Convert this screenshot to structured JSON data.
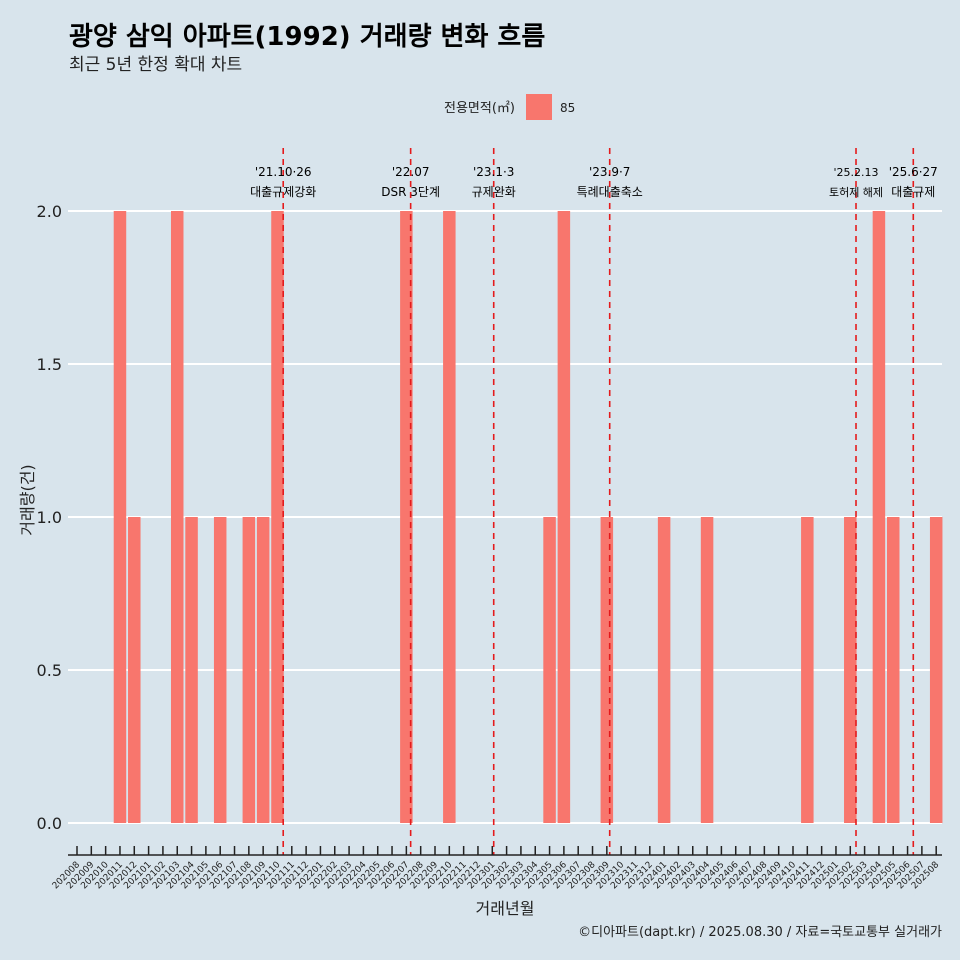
{
  "chart_data": {
    "type": "bar",
    "title": "광양 삼익 아파트(1992) 거래량 변화 흐름",
    "subtitle": "최근 5년 한정 확대 차트",
    "xlabel": "거래년월",
    "ylabel": "거래량(건)",
    "caption": "©디아파트(dapt.kr) / 2025.08.30 / 자료=국토교통부 실거래가",
    "ylim": [
      0,
      2.2
    ],
    "yticks": [
      0,
      0.5,
      1,
      1.5,
      2
    ],
    "ytick_labels": [
      "0.0",
      "0.5",
      "1.0",
      "1.5",
      "2.0"
    ],
    "grid": true,
    "legend": {
      "title": "전용면적(㎡)",
      "placement": "top",
      "entries": [
        {
          "label": "85",
          "color": "#f8766d"
        }
      ]
    },
    "categories": [
      "202008",
      "202009",
      "202010",
      "202011",
      "202012",
      "202101",
      "202102",
      "202103",
      "202104",
      "202105",
      "202106",
      "202107",
      "202108",
      "202109",
      "202110",
      "202111",
      "202112",
      "202201",
      "202202",
      "202203",
      "202204",
      "202205",
      "202206",
      "202207",
      "202208",
      "202209",
      "202210",
      "202211",
      "202212",
      "202301",
      "202302",
      "202303",
      "202304",
      "202305",
      "202306",
      "202307",
      "202308",
      "202309",
      "202310",
      "202311",
      "202312",
      "202401",
      "202402",
      "202403",
      "202404",
      "202405",
      "202406",
      "202407",
      "202408",
      "202409",
      "202410",
      "202411",
      "202412",
      "202501",
      "202502",
      "202503",
      "202504",
      "202505",
      "202506",
      "202507",
      "202508"
    ],
    "series": [
      {
        "name": "85",
        "color": "#f8766d",
        "points": [
          {
            "x": "202011",
            "y": 2
          },
          {
            "x": "202012",
            "y": 1
          },
          {
            "x": "202103",
            "y": 2
          },
          {
            "x": "202104",
            "y": 1
          },
          {
            "x": "202106",
            "y": 1
          },
          {
            "x": "202108",
            "y": 1
          },
          {
            "x": "202109",
            "y": 1
          },
          {
            "x": "202110",
            "y": 2
          },
          {
            "x": "202207",
            "y": 2
          },
          {
            "x": "202210",
            "y": 2
          },
          {
            "x": "202305",
            "y": 1
          },
          {
            "x": "202306",
            "y": 2
          },
          {
            "x": "202309",
            "y": 1
          },
          {
            "x": "202401",
            "y": 1
          },
          {
            "x": "202404",
            "y": 1
          },
          {
            "x": "202411",
            "y": 1
          },
          {
            "x": "202502",
            "y": 1
          },
          {
            "x": "202504",
            "y": 2
          },
          {
            "x": "202505",
            "y": 1
          },
          {
            "x": "202508",
            "y": 1
          }
        ]
      }
    ],
    "annotations": [
      {
        "date": "'21.10·26",
        "label": "대출규제강화",
        "month_index": 14.4
      },
      {
        "date": "'22.07",
        "label": "DSR 3단계",
        "month_index": 23.3
      },
      {
        "date": "'23.1·3",
        "label": "규제완화",
        "month_index": 29.1
      },
      {
        "date": "'23.9·7",
        "label": "특례대출축소",
        "month_index": 37.2
      },
      {
        "date": "'25.2.13",
        "label": "토허제 해제",
        "month_index": 54.4
      },
      {
        "date": "'25.6·27",
        "label": "대출규제",
        "month_index": 58.4
      }
    ],
    "annotation_color": "#e41a1c"
  }
}
